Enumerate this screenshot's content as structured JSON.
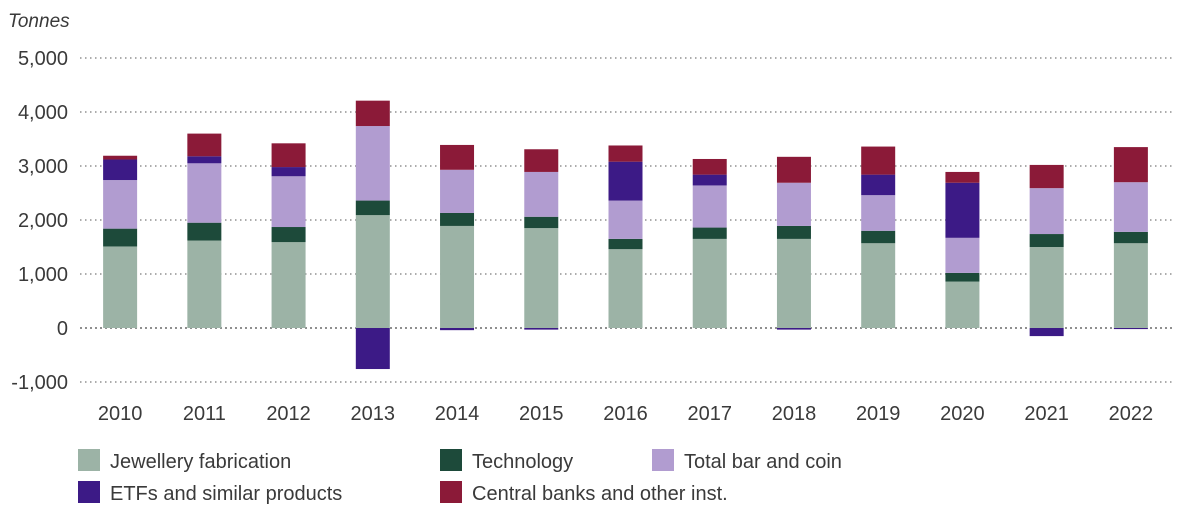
{
  "chart_data": {
    "type": "bar",
    "stacked": true,
    "unit_label": "Tonnes",
    "ylim": [
      -1000,
      5000
    ],
    "yticks": [
      -1000,
      0,
      1000,
      2000,
      3000,
      4000,
      5000
    ],
    "ytick_labels": [
      "-1,000",
      "0",
      "1,000",
      "2,000",
      "3,000",
      "4,000",
      "5,000"
    ],
    "grid": "horizontal-dotted",
    "legend_position": "bottom",
    "categories": [
      "2010",
      "2011",
      "2012",
      "2013",
      "2014",
      "2015",
      "2016",
      "2017",
      "2018",
      "2019",
      "2020",
      "2021",
      "2022"
    ],
    "series": [
      {
        "name": "Jewellery fabrication",
        "color": "#9cb3a6",
        "values": [
          1510,
          1620,
          1590,
          2090,
          1890,
          1850,
          1460,
          1650,
          1650,
          1570,
          860,
          1500,
          1570
        ]
      },
      {
        "name": "Technology",
        "color": "#1d4a3a",
        "values": [
          330,
          330,
          280,
          270,
          240,
          210,
          190,
          210,
          240,
          230,
          160,
          240,
          210
        ]
      },
      {
        "name": "Total bar and coin",
        "color": "#b19cd0",
        "values": [
          900,
          1100,
          940,
          1380,
          800,
          830,
          710,
          780,
          800,
          660,
          650,
          850,
          920
        ]
      },
      {
        "name": "ETFs and similar products",
        "color": "#3c1a86",
        "values": [
          380,
          130,
          170,
          -760,
          -40,
          -30,
          720,
          200,
          -30,
          380,
          1020,
          -150,
          -20
        ]
      },
      {
        "name": "Central banks and other inst.",
        "color": "#8b1a38",
        "values": [
          70,
          420,
          440,
          470,
          460,
          420,
          300,
          290,
          480,
          520,
          200,
          430,
          650
        ]
      }
    ]
  }
}
